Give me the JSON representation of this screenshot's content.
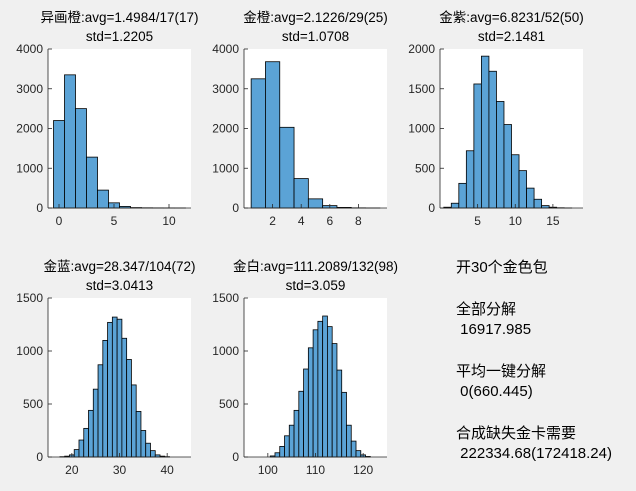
{
  "chart_data": [
    {
      "type": "bar",
      "title": "异画橙:avg=1.4984/17(17)",
      "subtitle": "std=1.2205",
      "xlim": [
        -1,
        12
      ],
      "ylim": [
        0,
        4000
      ],
      "xticks": [
        0,
        5,
        10
      ],
      "yticks": [
        0,
        1000,
        2000,
        3000,
        4000
      ],
      "bin_width": 1,
      "bins": [
        {
          "x": 0,
          "count": 2200
        },
        {
          "x": 1,
          "count": 3350
        },
        {
          "x": 2,
          "count": 2500
        },
        {
          "x": 3,
          "count": 1280
        },
        {
          "x": 4,
          "count": 450
        },
        {
          "x": 5,
          "count": 130
        },
        {
          "x": 6,
          "count": 40
        },
        {
          "x": 7,
          "count": 10
        },
        {
          "x": 8,
          "count": 5
        },
        {
          "x": 9,
          "count": 3
        },
        {
          "x": 10,
          "count": 2
        },
        {
          "x": 11,
          "count": 1
        }
      ]
    },
    {
      "type": "bar",
      "title": "金橙:avg=2.1226/29(25)",
      "subtitle": "std=1.0708",
      "xlim": [
        0,
        10
      ],
      "ylim": [
        0,
        4000
      ],
      "xticks": [
        2,
        4,
        6,
        8
      ],
      "yticks": [
        0,
        1000,
        2000,
        3000,
        4000
      ],
      "bin_width": 1,
      "bins": [
        {
          "x": 1,
          "count": 3250
        },
        {
          "x": 2,
          "count": 3680
        },
        {
          "x": 3,
          "count": 2030
        },
        {
          "x": 4,
          "count": 740
        },
        {
          "x": 5,
          "count": 230
        },
        {
          "x": 6,
          "count": 60
        },
        {
          "x": 7,
          "count": 15
        },
        {
          "x": 8,
          "count": 4
        },
        {
          "x": 9,
          "count": 1
        }
      ]
    },
    {
      "type": "bar",
      "title": "金紫:avg=6.8231/52(50)",
      "subtitle": "std=2.1481",
      "xlim": [
        0,
        19
      ],
      "ylim": [
        0,
        2000
      ],
      "xticks": [
        5,
        10,
        15
      ],
      "yticks": [
        0,
        500,
        1000,
        1500,
        2000
      ],
      "bin_width": 1,
      "bins": [
        {
          "x": 1,
          "count": 10
        },
        {
          "x": 2,
          "count": 60
        },
        {
          "x": 3,
          "count": 310
        },
        {
          "x": 4,
          "count": 720
        },
        {
          "x": 5,
          "count": 1560
        },
        {
          "x": 6,
          "count": 1910
        },
        {
          "x": 7,
          "count": 1720
        },
        {
          "x": 8,
          "count": 1340
        },
        {
          "x": 9,
          "count": 1050
        },
        {
          "x": 10,
          "count": 670
        },
        {
          "x": 11,
          "count": 470
        },
        {
          "x": 12,
          "count": 250
        },
        {
          "x": 13,
          "count": 110
        },
        {
          "x": 14,
          "count": 30
        },
        {
          "x": 15,
          "count": 10
        },
        {
          "x": 16,
          "count": 3
        },
        {
          "x": 17,
          "count": 1
        }
      ]
    },
    {
      "type": "bar",
      "title": "金蓝:avg=28.347/104(72)",
      "subtitle": "std=3.0413",
      "xlim": [
        15,
        45
      ],
      "ylim": [
        0,
        1500
      ],
      "xticks": [
        20,
        30,
        40
      ],
      "yticks": [
        0,
        500,
        1000,
        1500
      ],
      "bin_width": 1,
      "bins": [
        {
          "x": 18,
          "count": 3
        },
        {
          "x": 19,
          "count": 8
        },
        {
          "x": 20,
          "count": 20
        },
        {
          "x": 21,
          "count": 70
        },
        {
          "x": 22,
          "count": 160
        },
        {
          "x": 23,
          "count": 270
        },
        {
          "x": 24,
          "count": 440
        },
        {
          "x": 25,
          "count": 640
        },
        {
          "x": 26,
          "count": 870
        },
        {
          "x": 27,
          "count": 1100
        },
        {
          "x": 28,
          "count": 1270
        },
        {
          "x": 29,
          "count": 1320
        },
        {
          "x": 30,
          "count": 1300
        },
        {
          "x": 31,
          "count": 1120
        },
        {
          "x": 32,
          "count": 920
        },
        {
          "x": 33,
          "count": 680
        },
        {
          "x": 34,
          "count": 430
        },
        {
          "x": 35,
          "count": 250
        },
        {
          "x": 36,
          "count": 130
        },
        {
          "x": 37,
          "count": 60
        },
        {
          "x": 38,
          "count": 20
        },
        {
          "x": 39,
          "count": 8
        },
        {
          "x": 40,
          "count": 3
        }
      ]
    },
    {
      "type": "bar",
      "title": "金白:avg=111.2089/132(98)",
      "subtitle": "std=3.059",
      "xlim": [
        95,
        125
      ],
      "ylim": [
        0,
        1500
      ],
      "xticks": [
        100,
        110,
        120
      ],
      "yticks": [
        0,
        500,
        1000,
        1500
      ],
      "bin_width": 1,
      "bins": [
        {
          "x": 101,
          "count": 10
        },
        {
          "x": 102,
          "count": 40
        },
        {
          "x": 103,
          "count": 100
        },
        {
          "x": 104,
          "count": 200
        },
        {
          "x": 105,
          "count": 300
        },
        {
          "x": 106,
          "count": 440
        },
        {
          "x": 107,
          "count": 620
        },
        {
          "x": 108,
          "count": 830
        },
        {
          "x": 109,
          "count": 1030
        },
        {
          "x": 110,
          "count": 1200
        },
        {
          "x": 111,
          "count": 1280
        },
        {
          "x": 112,
          "count": 1330
        },
        {
          "x": 113,
          "count": 1230
        },
        {
          "x": 114,
          "count": 1070
        },
        {
          "x": 115,
          "count": 820
        },
        {
          "x": 116,
          "count": 610
        },
        {
          "x": 117,
          "count": 300
        },
        {
          "x": 118,
          "count": 150
        },
        {
          "x": 119,
          "count": 60
        },
        {
          "x": 120,
          "count": 20
        },
        {
          "x": 121,
          "count": 5
        }
      ]
    }
  ],
  "bar_color": "#5ba3d6",
  "bar_edge_color": "#000000",
  "plot_bg_color": "#ffffff",
  "stats": {
    "pack_label": "开30个金色包",
    "full_label": "全部分解",
    "full_value": " 16917.985",
    "avg_label": "平均一键分解",
    "avg_value": " 0(660.445)",
    "synth_label": "合成缺失金卡需要",
    "synth_value": " 222334.68(172418.24)"
  }
}
